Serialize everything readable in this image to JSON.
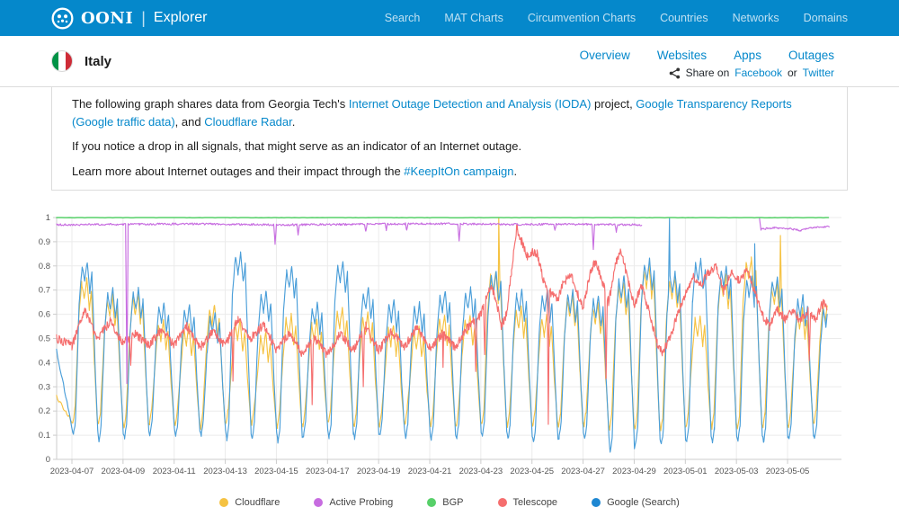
{
  "topbar": {
    "brand": "OONI",
    "brand_divider": "|",
    "brand_sub": "Explorer",
    "nav": [
      "Search",
      "MAT Charts",
      "Circumvention Charts",
      "Countries",
      "Networks",
      "Domains"
    ]
  },
  "header": {
    "country": "Italy",
    "tabs": [
      "Overview",
      "Websites",
      "Apps",
      "Outages"
    ],
    "share": {
      "prefix": "Share on",
      "facebook": "Facebook",
      "or": "or",
      "twitter": "Twitter"
    }
  },
  "intro": {
    "p1": {
      "t1": "The following graph shares data from Georgia Tech's ",
      "l1": "Internet Outage Detection and Analysis (IODA)",
      "t2": " project, ",
      "l2": "Google Transparency Reports (Google traffic data)",
      "t3": ", and ",
      "l3": "Cloudflare Radar",
      "t4": "."
    },
    "p2": "If you notice a drop in all signals, that might serve as an indicator of an Internet outage.",
    "p3": {
      "t1": "Learn more about Internet outages and their impact through the ",
      "l1": "#KeepItOn campaign",
      "t2": "."
    }
  },
  "chart_data": {
    "type": "line",
    "title": "",
    "xlabel": "",
    "ylabel": "",
    "ylim": [
      0,
      1
    ],
    "grid": true,
    "legend_position": "bottom",
    "x_domain_days": [
      -0.6,
      29.65
    ],
    "x_tick_days": [
      0,
      2,
      4,
      6,
      8,
      10,
      12,
      14,
      16,
      18,
      20,
      22,
      24,
      26,
      28
    ],
    "x_tick_labels": [
      "2023-04-07",
      "2023-04-09",
      "2023-04-11",
      "2023-04-13",
      "2023-04-15",
      "2023-04-17",
      "2023-04-19",
      "2023-04-21",
      "2023-04-23",
      "2023-04-25",
      "2023-04-27",
      "2023-04-29",
      "2023-05-01",
      "2023-05-03",
      "2023-05-05"
    ],
    "y_tick_values": [
      0,
      0.1,
      0.2,
      0.3,
      0.4,
      0.5,
      0.6,
      0.7,
      0.8,
      0.9,
      1
    ],
    "y_tick_labels": [
      "0",
      "0.1",
      "0.2",
      "0.3",
      "0.4",
      "0.5",
      "0.6",
      "0.7",
      "0.8",
      "0.9",
      "1"
    ],
    "legend_order": [
      "cloudflare",
      "active_probing",
      "bgp",
      "telescope",
      "google_search"
    ],
    "draw_order": [
      "cloudflare",
      "google_search",
      "telescope",
      "active_probing",
      "bgp"
    ],
    "series": {
      "cloudflare": {
        "label": "Cloudflare",
        "color": "#F5C242",
        "kind": "daily_wave",
        "edge_start": 0.26,
        "x_end": 29.55,
        "day_shift": 0,
        "daily_peaks": [
          0.77,
          0.7,
          0.71,
          0.6,
          0.58,
          0.66,
          0.6,
          0.55,
          0.62,
          0.6,
          0.65,
          0.63,
          0.58,
          0.57,
          0.62,
          0.62,
          0.8,
          0.65,
          0.62,
          0.7,
          0.67,
          0.75,
          0.82,
          0.78,
          0.62,
          0.78,
          0.85,
          0.75,
          0.65,
          0.68
        ],
        "daily_troughs": [
          0.15,
          0.14,
          0.13,
          0.15,
          0.14,
          0.13,
          0.15,
          0.14,
          0.13,
          0.14,
          0.15,
          0.13,
          0.14,
          0.15,
          0.13,
          0.14,
          0.15,
          0.13,
          0.14,
          0.13,
          0.14,
          0.12,
          0.13,
          0.12,
          0.14,
          0.13,
          0.12,
          0.13,
          0.14,
          0.15
        ],
        "spikes": [
          [
            16.7,
            1.0
          ],
          [
            27.72,
            0.92
          ]
        ]
      },
      "google_search": {
        "label": "Google (Search)",
        "color": "#4A9ED9",
        "legend_dot": "#1E87D2",
        "kind": "daily_wave",
        "edge_start": 0.45,
        "x_end": 29.55,
        "day_shift": 0.02,
        "daily_peaks": [
          0.84,
          0.73,
          0.73,
          0.67,
          0.66,
          0.63,
          0.88,
          0.72,
          0.82,
          0.67,
          0.84,
          0.73,
          0.68,
          0.67,
          0.72,
          0.73,
          0.8,
          0.72,
          0.72,
          0.72,
          0.7,
          0.78,
          0.85,
          0.8,
          0.85,
          0.82,
          0.78,
          0.78,
          0.7,
          0.66
        ],
        "daily_troughs": [
          0.1,
          0.08,
          0.09,
          0.1,
          0.09,
          0.1,
          0.08,
          0.09,
          0.07,
          0.1,
          0.09,
          0.08,
          0.1,
          0.09,
          0.08,
          0.09,
          0.1,
          0.08,
          0.07,
          0.09,
          0.08,
          0.03,
          0.07,
          0.06,
          0.08,
          0.07,
          0.08,
          0.07,
          0.08,
          0.09
        ],
        "spikes": [
          [
            23.38,
            1.0
          ],
          [
            26.7,
            1.0
          ]
        ]
      },
      "telescope": {
        "label": "Telescope",
        "color": "#F56E6E",
        "kind": "noisy_path",
        "noise": 0.018,
        "x_end": 29.55,
        "points": [
          [
            -0.6,
            0.5
          ],
          [
            0,
            0.47
          ],
          [
            0.5,
            0.62
          ],
          [
            1,
            0.5
          ],
          [
            1.5,
            0.57
          ],
          [
            2,
            0.48
          ],
          [
            2.5,
            0.52
          ],
          [
            3,
            0.47
          ],
          [
            3.5,
            0.54
          ],
          [
            4,
            0.47
          ],
          [
            4.5,
            0.55
          ],
          [
            5,
            0.46
          ],
          [
            5.5,
            0.53
          ],
          [
            6,
            0.47
          ],
          [
            6.5,
            0.58
          ],
          [
            7,
            0.5
          ],
          [
            7.5,
            0.56
          ],
          [
            8,
            0.45
          ],
          [
            8.5,
            0.52
          ],
          [
            9,
            0.44
          ],
          [
            9.5,
            0.5
          ],
          [
            10,
            0.43
          ],
          [
            10.5,
            0.52
          ],
          [
            11,
            0.45
          ],
          [
            11.5,
            0.55
          ],
          [
            12,
            0.45
          ],
          [
            12.5,
            0.53
          ],
          [
            13,
            0.46
          ],
          [
            13.5,
            0.55
          ],
          [
            14,
            0.46
          ],
          [
            14.5,
            0.52
          ],
          [
            15,
            0.46
          ],
          [
            15.5,
            0.55
          ],
          [
            16,
            0.6
          ],
          [
            16.4,
            0.72
          ],
          [
            16.6,
            0.66
          ],
          [
            16.8,
            0.55
          ],
          [
            17,
            0.6
          ],
          [
            17.2,
            0.78
          ],
          [
            17.4,
            0.96
          ],
          [
            17.6,
            0.9
          ],
          [
            17.8,
            0.84
          ],
          [
            18,
            0.86
          ],
          [
            18.2,
            0.85
          ],
          [
            18.5,
            0.72
          ],
          [
            18.8,
            0.68
          ],
          [
            19,
            0.66
          ],
          [
            19.2,
            0.72
          ],
          [
            19.5,
            0.77
          ],
          [
            19.8,
            0.68
          ],
          [
            20,
            0.63
          ],
          [
            20.3,
            0.78
          ],
          [
            20.5,
            0.82
          ],
          [
            20.8,
            0.72
          ],
          [
            21,
            0.65
          ],
          [
            21.3,
            0.82
          ],
          [
            21.5,
            0.86
          ],
          [
            21.8,
            0.72
          ],
          [
            22,
            0.64
          ],
          [
            22.3,
            0.72
          ],
          [
            22.6,
            0.6
          ],
          [
            22.9,
            0.48
          ],
          [
            23.1,
            0.44
          ],
          [
            23.4,
            0.5
          ],
          [
            23.7,
            0.6
          ],
          [
            24,
            0.68
          ],
          [
            24.3,
            0.76
          ],
          [
            24.6,
            0.72
          ],
          [
            24.9,
            0.77
          ],
          [
            25.2,
            0.8
          ],
          [
            25.5,
            0.7
          ],
          [
            25.8,
            0.78
          ],
          [
            26.1,
            0.74
          ],
          [
            26.4,
            0.78
          ],
          [
            26.7,
            0.7
          ],
          [
            27,
            0.6
          ],
          [
            27.3,
            0.55
          ],
          [
            27.6,
            0.62
          ],
          [
            27.9,
            0.58
          ],
          [
            28.2,
            0.62
          ],
          [
            28.5,
            0.57
          ],
          [
            28.8,
            0.62
          ],
          [
            29.1,
            0.58
          ],
          [
            29.4,
            0.65
          ],
          [
            29.55,
            0.62
          ]
        ],
        "downspikes": [
          [
            2.3,
            0.38
          ],
          [
            6.3,
            0.33
          ],
          [
            9.4,
            0.24
          ],
          [
            11.4,
            0.3
          ],
          [
            14.5,
            0.28
          ],
          [
            15.8,
            0.35
          ],
          [
            16.15,
            0.42
          ],
          [
            18.64,
            0.15
          ],
          [
            20.9,
            0.33
          ],
          [
            28.85,
            0.42
          ]
        ]
      },
      "active_probing": {
        "label": "Active Probing",
        "color": "#C76CE0",
        "kind": "segmented_path",
        "noise": 0.004,
        "segments": [
          {
            "points": [
              [
                -0.6,
                0.97
              ],
              [
                2,
                0.972
              ],
              [
                5,
                0.974
              ],
              [
                8,
                0.97
              ],
              [
                11,
                0.972
              ],
              [
                14,
                0.975
              ],
              [
                17,
                0.972
              ],
              [
                20,
                0.972
              ],
              [
                22.3,
                0.97
              ]
            ],
            "dips": [
              [
                2.15,
                0.31
              ],
              [
                7.95,
                0.89
              ],
              [
                8.85,
                0.93
              ],
              [
                11.5,
                0.94
              ],
              [
                12.3,
                0.95
              ],
              [
                13.1,
                0.947
              ],
              [
                15.15,
                0.9
              ],
              [
                18.9,
                0.95
              ],
              [
                20.4,
                0.87
              ],
              [
                21.3,
                0.94
              ]
            ]
          },
          {
            "points": [
              [
                26.9,
                1.0
              ],
              [
                26.96,
                0.952
              ],
              [
                27.5,
                0.958
              ],
              [
                28.0,
                0.955
              ],
              [
                28.5,
                0.946
              ],
              [
                29.0,
                0.96
              ],
              [
                29.65,
                0.962
              ]
            ],
            "dips": []
          }
        ]
      },
      "bgp": {
        "label": "BGP",
        "color": "#57D069",
        "kind": "noisy_path",
        "noise": 0.0012,
        "x_end": 29.6,
        "points": [
          [
            -0.6,
            1.0
          ],
          [
            29.6,
            1.0
          ]
        ],
        "downspikes": []
      }
    }
  }
}
